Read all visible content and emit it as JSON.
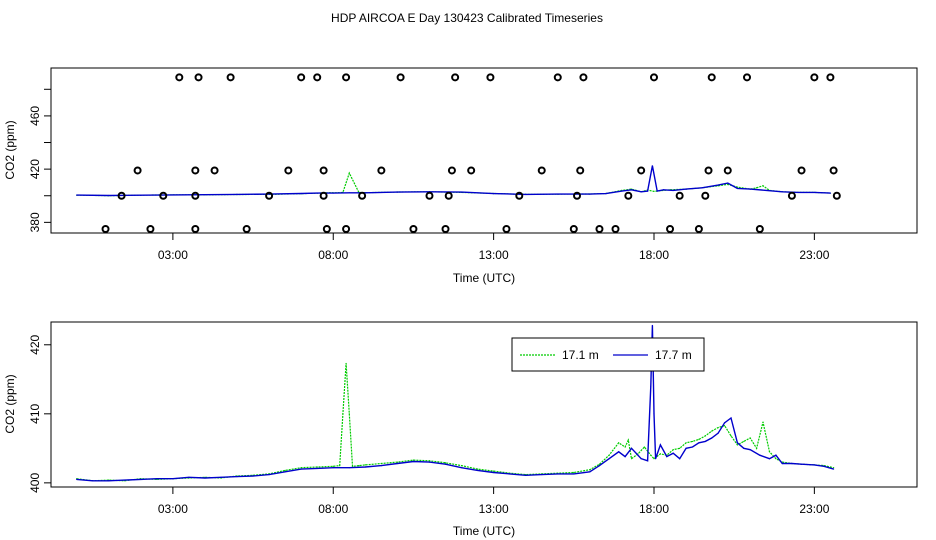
{
  "title": "HDP AIRCOA E  Day 130423  Calibrated Timeseries",
  "colors": {
    "green": "#00cc00",
    "blue": "#0000cc",
    "frame": "#000000"
  },
  "chart_data": [
    {
      "type": "scatter",
      "panel": "top",
      "xlabel": "Time (UTC)",
      "ylabel": "CO2 (ppm)",
      "xlim": [
        -0.8,
        26.2
      ],
      "ylim": [
        372,
        496
      ],
      "xticks": [
        {
          "value": 3,
          "label": "03:00"
        },
        {
          "value": 8,
          "label": "08:00"
        },
        {
          "value": 13,
          "label": "13:00"
        },
        {
          "value": 18,
          "label": "18:00"
        },
        {
          "value": 23,
          "label": "23:00"
        }
      ],
      "yticks": [
        {
          "value": 380,
          "label": "380"
        },
        {
          "value": 420,
          "label": "420"
        },
        {
          "value": 460,
          "label": "460"
        }
      ],
      "series": [
        {
          "color": "green",
          "style": "line",
          "x": [
            0,
            1,
            2,
            3,
            4,
            5,
            6,
            7,
            7.5,
            7.9,
            8.1,
            8.3,
            8.5,
            8.8,
            9,
            10,
            11,
            12,
            13,
            14,
            15,
            16,
            16.5,
            17,
            17.3,
            17.6,
            17.8,
            18,
            18.5,
            19,
            19.5,
            20,
            20.3,
            20.6,
            21,
            21.2,
            21.4,
            21.6,
            22,
            22.5,
            23,
            23.5
          ],
          "y": [
            400.5,
            400,
            400.5,
            400.6,
            400.7,
            400.9,
            401,
            401.5,
            402,
            402.3,
            402.2,
            402.5,
            417,
            402.4,
            402.3,
            402.8,
            403,
            402.5,
            401.7,
            401,
            401.2,
            401.3,
            401.7,
            404,
            405,
            403,
            404.3,
            403.3,
            404.5,
            405,
            406,
            407.5,
            408.5,
            406.5,
            405,
            406,
            407.5,
            404,
            403,
            402.5,
            402.5,
            402
          ]
        },
        {
          "color": "blue",
          "style": "line",
          "x": [
            0,
            1,
            2,
            3,
            4,
            5,
            6,
            7,
            7.5,
            8,
            8.5,
            9,
            10,
            11,
            12,
            13,
            14,
            15,
            16,
            16.5,
            17,
            17.3,
            17.6,
            17.8,
            17.95,
            18.1,
            18.3,
            18.6,
            19,
            19.5,
            20,
            20.3,
            20.6,
            21,
            21.5,
            22,
            22.5,
            23,
            23.5
          ],
          "y": [
            400.5,
            400.2,
            400.4,
            400.6,
            400.8,
            401,
            401.2,
            401.7,
            402,
            402,
            402.2,
            402.2,
            402.7,
            403,
            402.7,
            401.6,
            401,
            401.2,
            401.2,
            401.6,
            403.5,
            404.5,
            403,
            403.5,
            422.5,
            403.5,
            404.5,
            404,
            405,
            406,
            408,
            409.5,
            405.5,
            405,
            404,
            403,
            402.5,
            402.5,
            402
          ]
        },
        {
          "color": "frame",
          "style": "points",
          "x": [
            0.9,
            1.4,
            1.9,
            2.3,
            2.7,
            3.2,
            3.7,
            3.7,
            3.7,
            3.8,
            4.3,
            4.8,
            5.3,
            6,
            6.6,
            7,
            7.5,
            7.7,
            7.7,
            7.8,
            8.4,
            8.4,
            8.9,
            9.5,
            10.1,
            10.5,
            11,
            11.5,
            11.6,
            11.7,
            11.8,
            12.3,
            12.9,
            13.4,
            13.8,
            14.5,
            15,
            15.5,
            15.6,
            15.7,
            15.8,
            16.3,
            16.8,
            17.2,
            17.6,
            18,
            18.5,
            18.8,
            19.4,
            19.6,
            19.7,
            19.8,
            20.3,
            20.9,
            21.3,
            22.3,
            22.6,
            23,
            23.5,
            23.6,
            23.7
          ]
        }
      ]
    },
    {
      "type": "line",
      "panel": "bottom",
      "xlabel": "Time (UTC)",
      "ylabel": "CO2 (ppm)",
      "xlim": [
        -0.8,
        26.2
      ],
      "ylim": [
        399.4,
        423.3
      ],
      "xticks": [
        {
          "value": 3,
          "label": "03:00"
        },
        {
          "value": 8,
          "label": "08:00"
        },
        {
          "value": 13,
          "label": "13:00"
        },
        {
          "value": 18,
          "label": "18:00"
        },
        {
          "value": 23,
          "label": "23:00"
        }
      ],
      "yticks": [
        {
          "value": 400,
          "label": "400"
        },
        {
          "value": 410,
          "label": "410"
        },
        {
          "value": 420,
          "label": "420"
        }
      ],
      "legend": {
        "position": "top-center",
        "entries": [
          {
            "label": "17.1 m",
            "color": "green"
          },
          {
            "label": "17.7 m",
            "color": "blue"
          }
        ]
      },
      "series": [
        {
          "name": "17.1 m",
          "color": "green",
          "x": [
            0,
            0.5,
            1,
            1.5,
            2,
            2.5,
            3,
            3.5,
            4,
            4.5,
            5,
            5.5,
            6,
            6.5,
            7,
            7.5,
            8,
            8.2,
            8.3,
            8.4,
            8.5,
            8.6,
            8.8,
            9,
            9.5,
            10,
            10.5,
            11,
            11.5,
            12,
            12.5,
            13,
            13.5,
            14,
            14.5,
            15,
            15.5,
            16,
            16.3,
            16.6,
            16.9,
            17.1,
            17.2,
            17.3,
            17.5,
            17.7,
            17.9,
            18,
            18.2,
            18.4,
            18.6,
            18.8,
            19,
            19.2,
            19.4,
            19.6,
            19.8,
            20,
            20.2,
            20.4,
            20.6,
            20.8,
            21,
            21.2,
            21.4,
            21.6,
            21.8,
            22,
            22.3,
            22.6,
            23,
            23.3,
            23.6
          ],
          "y": [
            400.6,
            400.3,
            400.4,
            400.3,
            400.6,
            400.5,
            400.6,
            400.7,
            400.8,
            400.7,
            401,
            401.1,
            401.3,
            401.8,
            402.2,
            402.3,
            402.4,
            402.5,
            410,
            417.3,
            410,
            402.4,
            402.5,
            402.6,
            402.8,
            403,
            403.3,
            403.2,
            402.9,
            402.5,
            402,
            401.7,
            401.4,
            401.2,
            401.3,
            401.4,
            401.5,
            401.9,
            402.7,
            404,
            405.8,
            405.2,
            406.2,
            403.5,
            404.2,
            405.2,
            404,
            403.5,
            404.2,
            404,
            404.8,
            405,
            405.8,
            406,
            406.3,
            406.8,
            407.5,
            408,
            408.3,
            406.8,
            405.5,
            406,
            406.5,
            405,
            408.8,
            404.5,
            403.5,
            403,
            402.8,
            402.7,
            402.6,
            402.5,
            402.2
          ]
        },
        {
          "name": "17.7 m",
          "color": "blue",
          "x": [
            0,
            0.5,
            1,
            1.5,
            2,
            2.5,
            3,
            3.5,
            4,
            4.5,
            5,
            5.5,
            6,
            6.5,
            7,
            7.5,
            8,
            8.5,
            9,
            9.5,
            10,
            10.5,
            11,
            11.5,
            12,
            12.5,
            13,
            13.5,
            14,
            14.5,
            15,
            15.5,
            16,
            16.3,
            16.6,
            16.9,
            17.1,
            17.3,
            17.6,
            17.8,
            17.9,
            17.95,
            18,
            18.05,
            18.2,
            18.4,
            18.6,
            18.8,
            19,
            19.2,
            19.4,
            19.6,
            19.8,
            20,
            20.2,
            20.4,
            20.6,
            20.8,
            21,
            21.3,
            21.6,
            21.8,
            22,
            22.3,
            22.6,
            23,
            23.3,
            23.6
          ],
          "y": [
            400.5,
            400.3,
            400.3,
            400.4,
            400.5,
            400.6,
            400.6,
            400.8,
            400.7,
            400.8,
            400.9,
            401,
            401.2,
            401.6,
            402,
            402.1,
            402.2,
            402.2,
            402.3,
            402.5,
            402.8,
            403.1,
            403,
            402.7,
            402.2,
            401.8,
            401.5,
            401.3,
            401.1,
            401.2,
            401.3,
            401.3,
            401.6,
            402.5,
            403.5,
            404.5,
            403.8,
            405,
            403.5,
            403.2,
            414,
            422.8,
            410,
            403.5,
            405.5,
            403.8,
            404.3,
            403.5,
            405,
            405.2,
            405.8,
            406,
            406.5,
            407.2,
            408.7,
            409.4,
            405.8,
            405,
            404.8,
            404,
            403.5,
            404,
            402.8,
            402.8,
            402.7,
            402.6,
            402.4,
            402
          ]
        }
      ]
    }
  ]
}
